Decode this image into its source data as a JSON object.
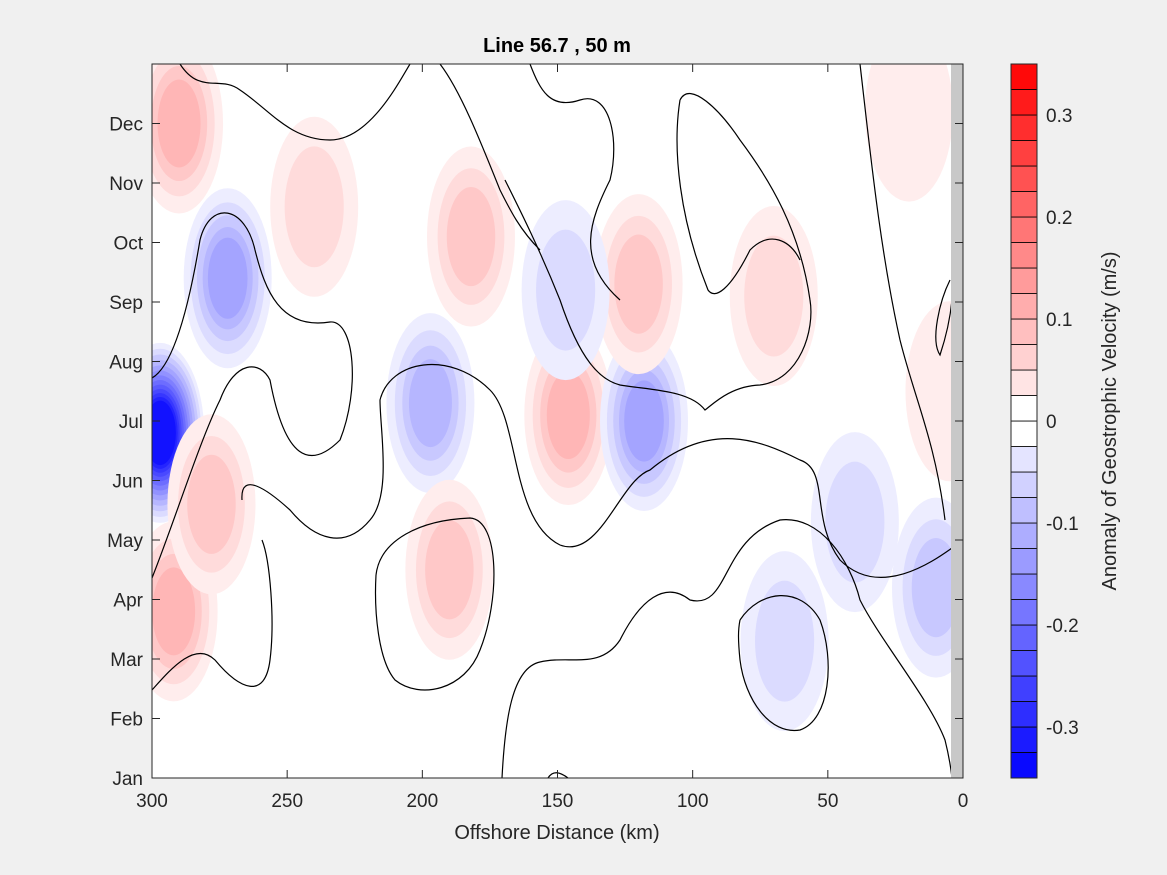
{
  "chart_data": {
    "type": "heatmap",
    "title": "Line 56.7 , 50 m",
    "xlabel": "Offshore Distance (km)",
    "x_ticks": [
      "300",
      "250",
      "200",
      "150",
      "100",
      "50",
      "0"
    ],
    "x_tick_values": [
      300,
      250,
      200,
      150,
      100,
      50,
      0
    ],
    "xlim": [
      300,
      0
    ],
    "y_ticks": [
      "Jan",
      "Feb",
      "Mar",
      "Apr",
      "May",
      "Jun",
      "Jul",
      "Aug",
      "Sep",
      "Oct",
      "Nov",
      "Dec"
    ],
    "colorbar": {
      "label": "Anomaly of Geostrophic Velocity (m/s)",
      "ticks": [
        "-0.3",
        "-0.2",
        "-0.1",
        "0",
        "0.1",
        "0.2",
        "0.3"
      ],
      "tick_values": [
        -0.3,
        -0.2,
        -0.1,
        0,
        0.1,
        0.2,
        0.3
      ],
      "clim": [
        -0.35,
        0.35
      ],
      "step": 0.025,
      "neg_color": "#0000ff",
      "pos_color": "#ff0000",
      "zero_color": "#ffffff"
    },
    "anomaly_features": [
      {
        "km": 297,
        "month": 5.8,
        "value": -0.33
      },
      {
        "km": 272,
        "month": 8.4,
        "value": -0.13
      },
      {
        "km": 290,
        "month": 11.0,
        "value": 0.12
      },
      {
        "km": 292,
        "month": 2.8,
        "value": 0.12
      },
      {
        "km": 278,
        "month": 4.6,
        "value": 0.09
      },
      {
        "km": 240,
        "month": 9.6,
        "value": 0.07
      },
      {
        "km": 182,
        "month": 9.1,
        "value": 0.09
      },
      {
        "km": 197,
        "month": 6.3,
        "value": -0.12
      },
      {
        "km": 146,
        "month": 6.1,
        "value": 0.11
      },
      {
        "km": 118,
        "month": 6.0,
        "value": -0.14
      },
      {
        "km": 190,
        "month": 3.5,
        "value": 0.09
      },
      {
        "km": 120,
        "month": 8.3,
        "value": 0.08
      },
      {
        "km": 70,
        "month": 8.1,
        "value": 0.06
      },
      {
        "km": 147,
        "month": 8.2,
        "value": -0.06
      },
      {
        "km": 66,
        "month": 2.3,
        "value": -0.07
      },
      {
        "km": 40,
        "month": 4.3,
        "value": -0.07
      },
      {
        "km": 10,
        "month": 3.2,
        "value": -0.09
      },
      {
        "km": 20,
        "month": 11.2,
        "value": 0.04
      },
      {
        "km": 5,
        "month": 6.5,
        "value": 0.04
      }
    ]
  }
}
